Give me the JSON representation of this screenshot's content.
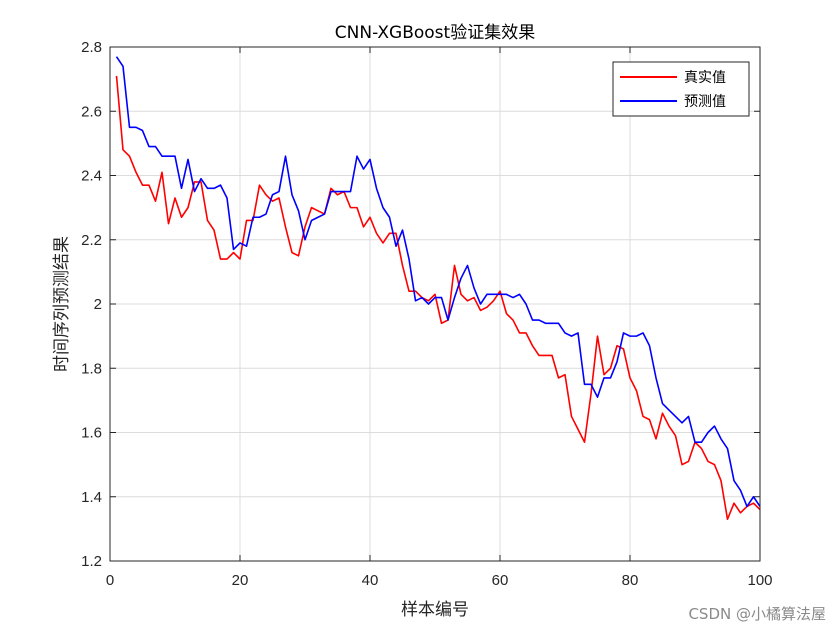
{
  "chart_data": {
    "type": "line",
    "title": "CNN-XGBoost验证集效果",
    "xlabel": "样本编号",
    "ylabel": "时间序列预测结果",
    "xlim": [
      0,
      100
    ],
    "ylim": [
      1.2,
      2.8
    ],
    "xticks": [
      0,
      20,
      40,
      60,
      80,
      100
    ],
    "yticks": [
      1.2,
      1.4,
      1.6,
      1.8,
      2,
      2.2,
      2.4,
      2.6,
      2.8
    ],
    "ytick_labels": [
      "1.2",
      "1.4",
      "1.6",
      "1.8",
      "2",
      "2.2",
      "2.4",
      "2.6",
      "2.8"
    ],
    "xtick_labels": [
      "0",
      "20",
      "40",
      "60",
      "80",
      "100"
    ],
    "grid": true,
    "legend_position": "top-right",
    "series": [
      {
        "name": "真实值",
        "color": "#ff0000",
        "values": [
          2.71,
          2.48,
          2.46,
          2.41,
          2.37,
          2.37,
          2.32,
          2.41,
          2.25,
          2.33,
          2.27,
          2.3,
          2.38,
          2.38,
          2.26,
          2.23,
          2.14,
          2.14,
          2.16,
          2.14,
          2.26,
          2.26,
          2.37,
          2.34,
          2.32,
          2.33,
          2.24,
          2.16,
          2.15,
          2.24,
          2.3,
          2.29,
          2.28,
          2.36,
          2.34,
          2.35,
          2.3,
          2.3,
          2.24,
          2.27,
          2.22,
          2.19,
          2.22,
          2.22,
          2.12,
          2.04,
          2.04,
          2.02,
          2.01,
          2.03,
          1.94,
          1.95,
          2.12,
          2.03,
          2.01,
          2.02,
          1.98,
          1.99,
          2.01,
          2.04,
          1.97,
          1.95,
          1.91,
          1.91,
          1.87,
          1.84,
          1.84,
          1.84,
          1.77,
          1.78,
          1.65,
          1.61,
          1.57,
          1.72,
          1.9,
          1.78,
          1.8,
          1.87,
          1.86,
          1.77,
          1.73,
          1.65,
          1.64,
          1.58,
          1.66,
          1.62,
          1.59,
          1.5,
          1.51,
          1.57,
          1.55,
          1.51,
          1.5,
          1.45,
          1.33,
          1.38,
          1.35,
          1.37,
          1.38,
          1.36
        ]
      },
      {
        "name": "预测值",
        "color": "#0000ff",
        "values": [
          2.77,
          2.74,
          2.55,
          2.55,
          2.54,
          2.49,
          2.49,
          2.46,
          2.46,
          2.46,
          2.36,
          2.45,
          2.35,
          2.39,
          2.36,
          2.36,
          2.37,
          2.33,
          2.17,
          2.19,
          2.18,
          2.27,
          2.27,
          2.28,
          2.34,
          2.35,
          2.46,
          2.34,
          2.29,
          2.2,
          2.26,
          2.27,
          2.28,
          2.35,
          2.35,
          2.35,
          2.35,
          2.46,
          2.42,
          2.45,
          2.36,
          2.3,
          2.27,
          2.18,
          2.23,
          2.14,
          2.01,
          2.02,
          2.0,
          2.02,
          2.02,
          1.95,
          2.02,
          2.08,
          2.12,
          2.05,
          2.0,
          2.03,
          2.03,
          2.03,
          2.03,
          2.02,
          2.03,
          2.0,
          1.95,
          1.95,
          1.94,
          1.94,
          1.94,
          1.91,
          1.9,
          1.91,
          1.75,
          1.75,
          1.71,
          1.77,
          1.77,
          1.82,
          1.91,
          1.9,
          1.9,
          1.91,
          1.87,
          1.77,
          1.69,
          1.67,
          1.65,
          1.63,
          1.65,
          1.57,
          1.57,
          1.6,
          1.62,
          1.58,
          1.55,
          1.45,
          1.42,
          1.37,
          1.4,
          1.37
        ]
      }
    ]
  },
  "watermark": "CSDN @小橘算法屋"
}
